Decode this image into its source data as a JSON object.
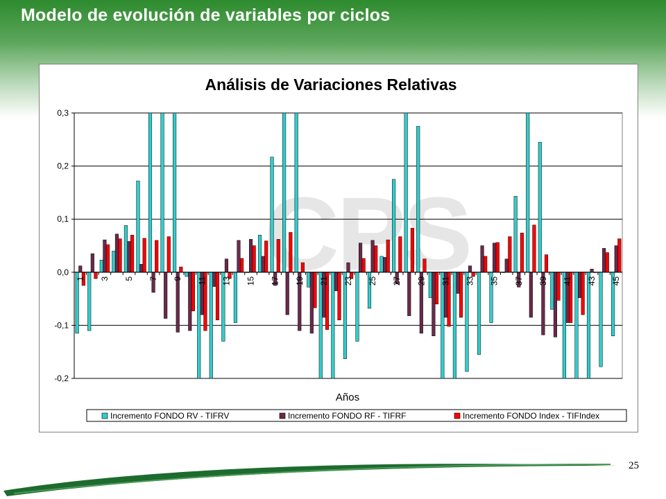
{
  "slide": {
    "title": "Modelo de evolución de variables por ciclos",
    "page_number": "25"
  },
  "colors": {
    "header_green": "#2e8b2e",
    "footer_green": "#1d6b2e",
    "series_rv": "#33cccc",
    "series_rf": "#6b2a4a",
    "series_index": "#ff0000"
  },
  "watermark_text": "CPS",
  "chart_data": {
    "type": "bar",
    "title": "Análisis de Variaciones Relativas",
    "xlabel": "Años",
    "ylabel": "",
    "ylim": [
      -0.2,
      0.3
    ],
    "yticks": [
      -0.2,
      -0.1,
      0.0,
      0.1,
      0.2,
      0.3
    ],
    "ytick_labels": [
      "-0,2",
      "-0,1",
      "0,0",
      "0,1",
      "0,2",
      "0,3"
    ],
    "grid": true,
    "legend_position": "bottom",
    "categories": [
      "1",
      "2",
      "3",
      "4",
      "5",
      "6",
      "7",
      "8",
      "9",
      "10",
      "11",
      "12",
      "13",
      "14",
      "15",
      "16",
      "17",
      "18",
      "19",
      "20",
      "21",
      "22",
      "23",
      "24",
      "25",
      "26",
      "27",
      "28",
      "29",
      "30",
      "31",
      "32",
      "33",
      "34",
      "35",
      "36",
      "37",
      "38",
      "39",
      "40",
      "41",
      "42",
      "43",
      "44",
      "45"
    ],
    "category_labels": [
      "1",
      "",
      "3",
      "",
      "5",
      "",
      "7",
      "",
      "9",
      "",
      "11",
      "",
      "13",
      "",
      "15",
      "",
      "17",
      "",
      "19",
      "",
      "21",
      "",
      "23",
      "",
      "25",
      "",
      "27",
      "",
      "29",
      "",
      "31",
      "",
      "33",
      "",
      "35",
      "",
      "37",
      "",
      "39",
      "",
      "41",
      "",
      "43",
      "",
      "45"
    ],
    "series": [
      {
        "name": "Incremento FONDO RV - TIFRV",
        "color": "#33cccc",
        "values": [
          -0.115,
          -0.11,
          0.023,
          0.04,
          0.088,
          0.172,
          0.3,
          0.3,
          0.3,
          -0.008,
          -0.2,
          -0.2,
          -0.13,
          -0.095,
          0.0,
          0.07,
          0.217,
          0.3,
          0.3,
          -0.028,
          -0.2,
          -0.2,
          -0.163,
          -0.13,
          -0.068,
          0.03,
          0.175,
          0.3,
          0.275,
          -0.048,
          -0.2,
          -0.2,
          -0.187,
          -0.155,
          -0.095,
          0.0,
          0.143,
          0.3,
          0.245,
          -0.07,
          -0.2,
          -0.2,
          -0.2,
          -0.178,
          -0.12
        ]
      },
      {
        "name": "Incremento FONDO RF - TIFRF",
        "color": "#6b2a4a",
        "values": [
          0.012,
          0.035,
          0.061,
          0.072,
          0.058,
          0.015,
          -0.038,
          -0.087,
          -0.113,
          -0.11,
          -0.08,
          -0.027,
          0.025,
          0.06,
          0.062,
          0.03,
          -0.025,
          -0.08,
          -0.11,
          -0.115,
          -0.085,
          -0.035,
          0.018,
          0.055,
          0.06,
          0.028,
          -0.022,
          -0.082,
          -0.115,
          -0.12,
          -0.085,
          -0.04,
          0.012,
          0.05,
          0.055,
          0.025,
          -0.028,
          -0.085,
          -0.118,
          -0.122,
          -0.095,
          -0.048,
          0.006,
          0.045,
          0.05
        ]
      },
      {
        "name": "Incremento FONDO Index - TIFIndex",
        "color": "#ff0000",
        "values": [
          -0.025,
          -0.012,
          0.052,
          0.063,
          0.07,
          0.064,
          0.06,
          0.067,
          0.01,
          -0.073,
          -0.11,
          -0.09,
          -0.012,
          0.026,
          0.05,
          0.059,
          0.062,
          0.075,
          0.018,
          -0.067,
          -0.108,
          -0.09,
          -0.012,
          0.026,
          0.05,
          0.061,
          0.067,
          0.083,
          0.025,
          -0.06,
          -0.102,
          -0.085,
          -0.008,
          0.03,
          0.056,
          0.067,
          0.074,
          0.089,
          0.033,
          -0.053,
          -0.095,
          -0.08,
          0.0,
          0.037,
          0.063
        ]
      }
    ]
  }
}
